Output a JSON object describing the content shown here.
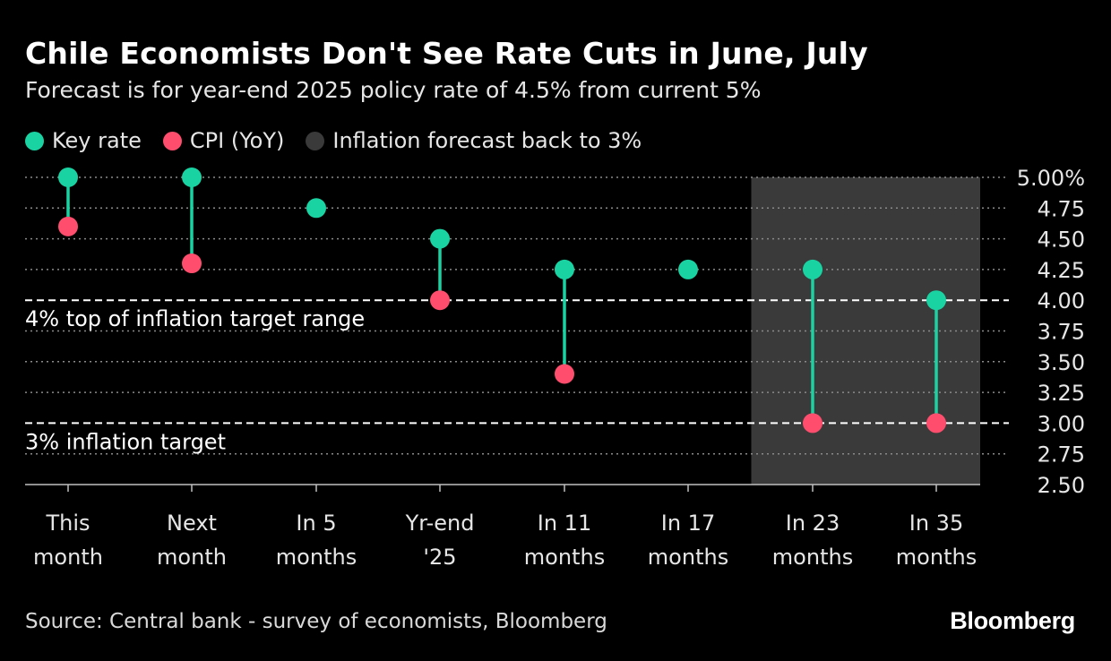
{
  "header": {
    "title": "Chile Economists Don't See Rate Cuts in June, July",
    "subtitle": "Forecast is for year-end 2025 policy rate of 4.5% from current 5%"
  },
  "legend": [
    {
      "label": "Key rate",
      "color": "#19d3a2"
    },
    {
      "label": "CPI (YoY)",
      "color": "#ff4d6d"
    },
    {
      "label": "Inflation forecast back to 3%",
      "color": "#3a3a3a"
    }
  ],
  "footer": {
    "source": "Source: Central bank - survey of economists, Bloomberg",
    "brand": "Bloomberg"
  },
  "chart_data": {
    "type": "dot-range",
    "categories": [
      [
        "This",
        "month"
      ],
      [
        "Next",
        "month"
      ],
      [
        "In 5",
        "months"
      ],
      [
        "Yr-end",
        "'25"
      ],
      [
        "In 11",
        "months"
      ],
      [
        "In 17",
        "months"
      ],
      [
        "In 23",
        "months"
      ],
      [
        "In 35",
        "months"
      ]
    ],
    "series": [
      {
        "name": "Key rate",
        "color": "#19d3a2",
        "values": [
          5.0,
          5.0,
          4.75,
          4.5,
          4.25,
          4.25,
          4.25,
          4.0
        ]
      },
      {
        "name": "CPI (YoY)",
        "color": "#ff4d6d",
        "values": [
          4.6,
          4.3,
          null,
          4.0,
          3.4,
          null,
          3.0,
          3.0
        ]
      }
    ],
    "ylim": [
      2.5,
      5.0
    ],
    "yticks": [
      "5.00%",
      "4.75",
      "4.50",
      "4.25",
      "4.00",
      "3.75",
      "3.50",
      "3.25",
      "3.00",
      "2.75",
      "2.50"
    ],
    "ytick_values": [
      5.0,
      4.75,
      4.5,
      4.25,
      4.0,
      3.75,
      3.5,
      3.25,
      3.0,
      2.75,
      2.5
    ],
    "y_axis_side": "right",
    "grid": true,
    "reference_lines": [
      {
        "value": 4.0,
        "label": "4% top of inflation target range"
      },
      {
        "value": 3.0,
        "label": "3% inflation target"
      }
    ],
    "shaded_region": {
      "from_category_index": 6,
      "to_category_index": 7,
      "label": "Inflation forecast back to 3%",
      "color": "#3a3a3a"
    }
  }
}
